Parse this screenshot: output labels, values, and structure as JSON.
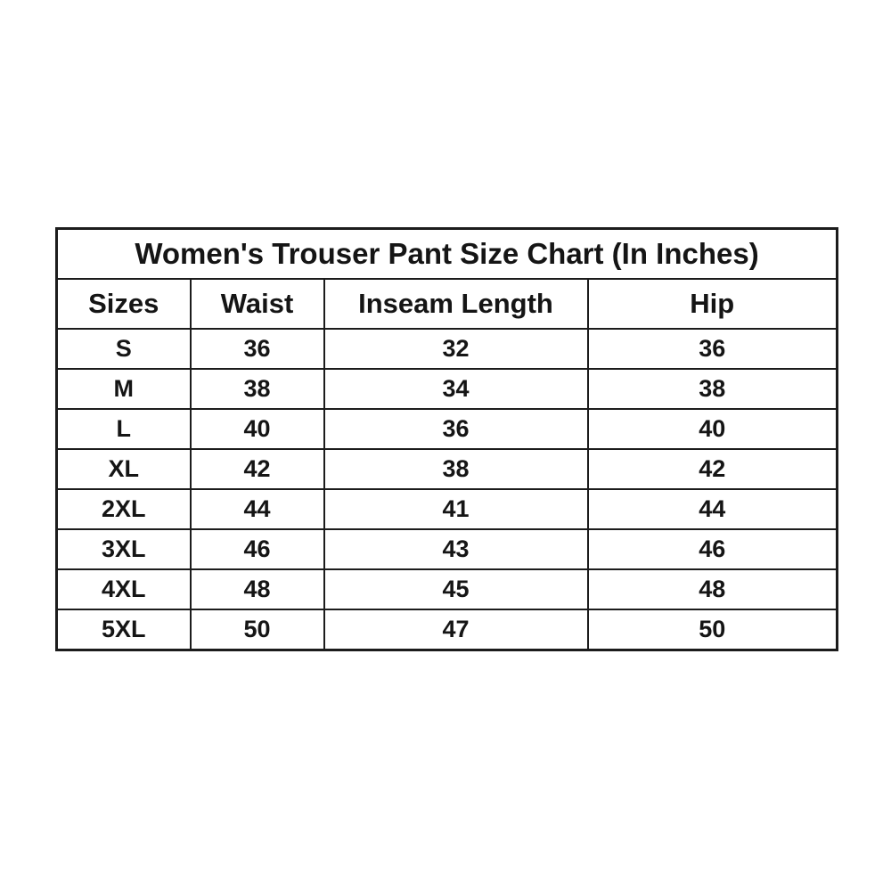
{
  "chart_data": {
    "type": "table",
    "title": "Women's Trouser Pant Size Chart (In Inches)",
    "columns": [
      "Sizes",
      "Waist",
      "Inseam Length",
      "Hip"
    ],
    "rows": [
      [
        "S",
        "36",
        "32",
        "36"
      ],
      [
        "M",
        "38",
        "34",
        "38"
      ],
      [
        "L",
        "40",
        "36",
        "40"
      ],
      [
        "XL",
        "42",
        "38",
        "42"
      ],
      [
        "2XL",
        "44",
        "41",
        "44"
      ],
      [
        "3XL",
        "46",
        "43",
        "46"
      ],
      [
        "4XL",
        "48",
        "45",
        "48"
      ],
      [
        "5XL",
        "50",
        "47",
        "50"
      ]
    ],
    "layout": {
      "legend": "none",
      "grid": "full-borders"
    }
  },
  "colors": {
    "background": "#ffffff",
    "border": "#1c1c1c",
    "text": "#151515"
  }
}
